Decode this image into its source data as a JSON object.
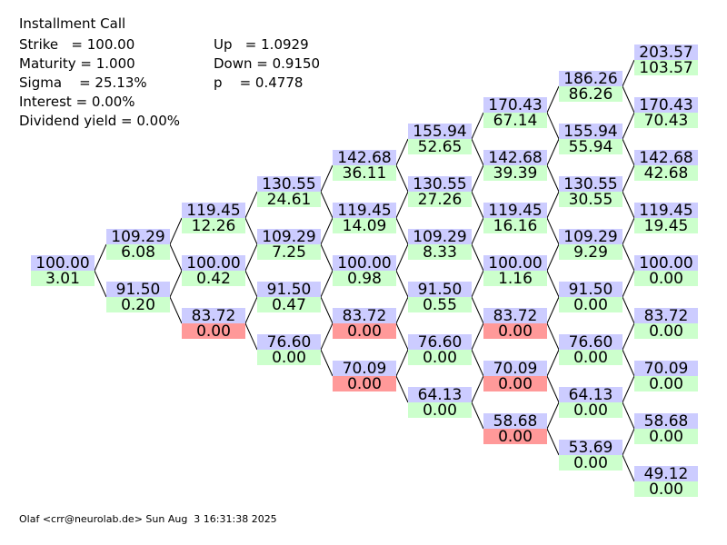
{
  "header": {
    "title": "Installment Call",
    "params_left": [
      "Strike   = 100.00",
      "Maturity = 1.000",
      "Sigma    = 25.13%",
      "Interest = 0.00%",
      "Dividend yield = 0.00%"
    ],
    "params_right": [
      "Up   = 1.0929",
      "Down = 0.9150",
      "p    = 0.4778"
    ]
  },
  "tree": {
    "price_color": "#ccccff",
    "value_color": "#ccffcc",
    "columns": [
      [
        {
          "price": "100.00",
          "value": "3.01"
        }
      ],
      [
        {
          "price": "109.29",
          "value": "6.08"
        },
        {
          "price": "91.50",
          "value": "0.20"
        }
      ],
      [
        {
          "price": "119.45",
          "value": "12.26"
        },
        {
          "price": "100.00",
          "value": "0.42"
        },
        {
          "price": "83.72",
          "value": "0.00",
          "color": "#ff9999"
        }
      ],
      [
        {
          "price": "130.55",
          "value": "24.61"
        },
        {
          "price": "109.29",
          "value": "7.25"
        },
        {
          "price": "91.50",
          "value": "0.47"
        },
        {
          "price": "76.60",
          "value": "0.00"
        }
      ],
      [
        {
          "price": "142.68",
          "value": "36.11"
        },
        {
          "price": "119.45",
          "value": "14.09"
        },
        {
          "price": "100.00",
          "value": "0.98"
        },
        {
          "price": "83.72",
          "value": "0.00",
          "color": "#ff9999"
        },
        {
          "price": "70.09",
          "value": "0.00",
          "color": "#ff9999"
        }
      ],
      [
        {
          "price": "155.94",
          "value": "52.65"
        },
        {
          "price": "130.55",
          "value": "27.26"
        },
        {
          "price": "109.29",
          "value": "8.33"
        },
        {
          "price": "91.50",
          "value": "0.55"
        },
        {
          "price": "76.60",
          "value": "0.00"
        },
        {
          "price": "64.13",
          "value": "0.00"
        }
      ],
      [
        {
          "price": "170.43",
          "value": "67.14"
        },
        {
          "price": "142.68",
          "value": "39.39"
        },
        {
          "price": "119.45",
          "value": "16.16"
        },
        {
          "price": "100.00",
          "value": "1.16"
        },
        {
          "price": "83.72",
          "value": "0.00",
          "color": "#ff9999"
        },
        {
          "price": "70.09",
          "value": "0.00",
          "color": "#ff9999"
        },
        {
          "price": "58.68",
          "value": "0.00",
          "color": "#ff9999"
        }
      ],
      [
        {
          "price": "186.26",
          "value": "86.26"
        },
        {
          "price": "155.94",
          "value": "55.94"
        },
        {
          "price": "130.55",
          "value": "30.55"
        },
        {
          "price": "109.29",
          "value": "9.29"
        },
        {
          "price": "91.50",
          "value": "0.00"
        },
        {
          "price": "76.60",
          "value": "0.00"
        },
        {
          "price": "64.13",
          "value": "0.00"
        },
        {
          "price": "53.69",
          "value": "0.00"
        }
      ],
      [
        {
          "price": "203.57",
          "value": "103.57"
        },
        {
          "price": "170.43",
          "value": "70.43"
        },
        {
          "price": "142.68",
          "value": "42.68"
        },
        {
          "price": "119.45",
          "value": "19.45"
        },
        {
          "price": "100.00",
          "value": "0.00"
        },
        {
          "price": "83.72",
          "value": "0.00"
        },
        {
          "price": "70.09",
          "value": "0.00"
        },
        {
          "price": "58.68",
          "value": "0.00"
        },
        {
          "price": "49.12",
          "value": "0.00"
        }
      ]
    ]
  },
  "footer": "Olaf <crr@neurolab.de> Sun Aug  3 16:31:38 2025"
}
